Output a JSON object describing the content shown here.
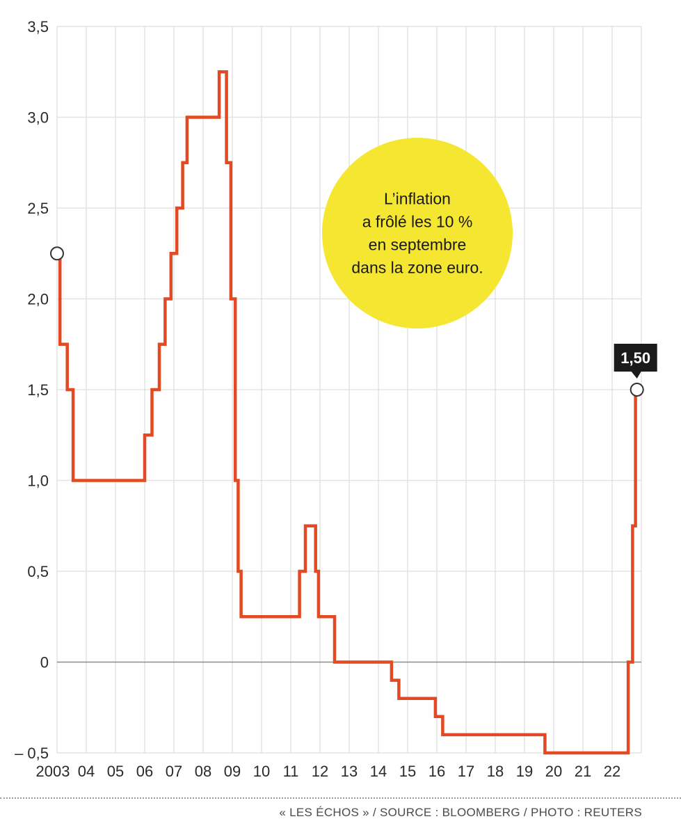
{
  "chart_data": {
    "type": "line",
    "style": "step",
    "title": "",
    "xlabel": "",
    "ylabel": "",
    "xlim": [
      2003.0,
      2022.85
    ],
    "ylim": [
      -0.5,
      3.5
    ],
    "grid": true,
    "line_color": "#e24a24",
    "y_ticks": [
      {
        "v": -0.5,
        "label": "– 0,5"
      },
      {
        "v": 0,
        "label": "0"
      },
      {
        "v": 0.5,
        "label": "0,5"
      },
      {
        "v": 1.0,
        "label": "1,0"
      },
      {
        "v": 1.5,
        "label": "1,5"
      },
      {
        "v": 2.0,
        "label": "2,0"
      },
      {
        "v": 2.5,
        "label": "2,5"
      },
      {
        "v": 3.0,
        "label": "3,0"
      },
      {
        "v": 3.5,
        "label": "3,5"
      }
    ],
    "x_ticks": [
      {
        "v": 2003.0,
        "label": "2003"
      },
      {
        "v": 2004.0,
        "label": "04"
      },
      {
        "v": 2005.0,
        "label": "05"
      },
      {
        "v": 2006.0,
        "label": "06"
      },
      {
        "v": 2007.0,
        "label": "07"
      },
      {
        "v": 2008.0,
        "label": "08"
      },
      {
        "v": 2009.0,
        "label": "09"
      },
      {
        "v": 2010.0,
        "label": "10"
      },
      {
        "v": 2011.0,
        "label": "11"
      },
      {
        "v": 2012.0,
        "label": "12"
      },
      {
        "v": 2013.0,
        "label": "13"
      },
      {
        "v": 2014.0,
        "label": "14"
      },
      {
        "v": 2015.0,
        "label": "15"
      },
      {
        "v": 2016.0,
        "label": "16"
      },
      {
        "v": 2017.0,
        "label": "17"
      },
      {
        "v": 2018.0,
        "label": "18"
      },
      {
        "v": 2019.0,
        "label": "19"
      },
      {
        "v": 2020.0,
        "label": "20"
      },
      {
        "v": 2021.0,
        "label": "21"
      },
      {
        "v": 2022.0,
        "label": "22"
      }
    ],
    "series": [
      {
        "steps": [
          {
            "x": 2003.0,
            "y": 2.25
          },
          {
            "x": 2003.1,
            "y": 1.75
          },
          {
            "x": 2003.35,
            "y": 1.5
          },
          {
            "x": 2003.55,
            "y": 1.0
          },
          {
            "x": 2006.0,
            "y": 1.25
          },
          {
            "x": 2006.25,
            "y": 1.5
          },
          {
            "x": 2006.5,
            "y": 1.75
          },
          {
            "x": 2006.7,
            "y": 2.0
          },
          {
            "x": 2006.9,
            "y": 2.25
          },
          {
            "x": 2007.1,
            "y": 2.5
          },
          {
            "x": 2007.3,
            "y": 2.75
          },
          {
            "x": 2007.45,
            "y": 3.0
          },
          {
            "x": 2008.55,
            "y": 3.25
          },
          {
            "x": 2008.8,
            "y": 2.75
          },
          {
            "x": 2008.95,
            "y": 2.0
          },
          {
            "x": 2009.1,
            "y": 1.0
          },
          {
            "x": 2009.2,
            "y": 0.5
          },
          {
            "x": 2009.3,
            "y": 0.25
          },
          {
            "x": 2011.3,
            "y": 0.5
          },
          {
            "x": 2011.5,
            "y": 0.75
          },
          {
            "x": 2011.85,
            "y": 0.5
          },
          {
            "x": 2011.95,
            "y": 0.25
          },
          {
            "x": 2012.5,
            "y": 0.0
          },
          {
            "x": 2014.45,
            "y": -0.1
          },
          {
            "x": 2014.7,
            "y": -0.2
          },
          {
            "x": 2015.95,
            "y": -0.3
          },
          {
            "x": 2016.2,
            "y": -0.4
          },
          {
            "x": 2019.7,
            "y": -0.5
          },
          {
            "x": 2022.55,
            "y": 0.0
          },
          {
            "x": 2022.7,
            "y": 0.75
          },
          {
            "x": 2022.8,
            "y": 1.5
          },
          {
            "x": 2022.85,
            "y": 1.5
          }
        ]
      }
    ],
    "start_marker": {
      "x": 2003.0,
      "y": 2.25
    },
    "end_marker": {
      "x": 2022.85,
      "y": 1.5
    },
    "end_label": "1,50",
    "annotation": {
      "lines": [
        "L’inflation",
        "a frôlé les 10 %",
        "en septembre",
        "dans la zone euro."
      ],
      "color": "#f4e631"
    }
  },
  "footer": {
    "credit": "« LES ÉCHOS » / SOURCE : BLOOMBERG / PHOTO : REUTERS"
  }
}
